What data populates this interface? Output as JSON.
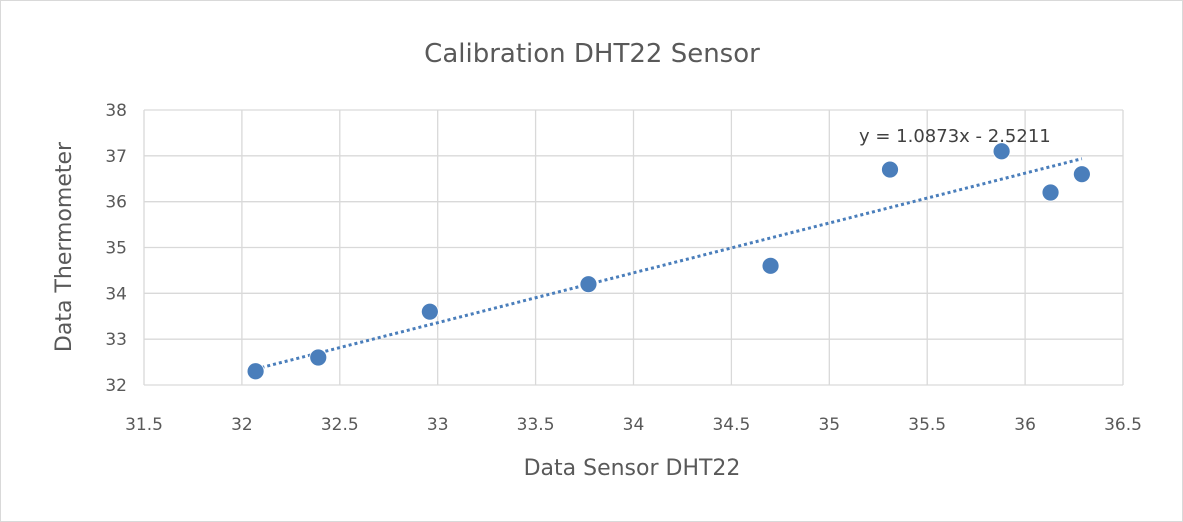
{
  "chart_data": {
    "type": "scatter",
    "title": "Calibration DHT22 Sensor",
    "xlabel": "Data Sensor DHT22",
    "ylabel": "Data Thermometer",
    "xlim": [
      31.5,
      36.5
    ],
    "ylim": [
      32,
      38
    ],
    "x_ticks": [
      "31.5",
      "32",
      "32.5",
      "33",
      "33.5",
      "34",
      "34.5",
      "35",
      "35.5",
      "36",
      "36.5"
    ],
    "y_ticks": [
      "32",
      "33",
      "34",
      "35",
      "36",
      "37",
      "38"
    ],
    "grid": true,
    "legend": "none",
    "marker_color": "#4a7ebb",
    "points": [
      {
        "x": 32.07,
        "y": 32.3
      },
      {
        "x": 32.39,
        "y": 32.6
      },
      {
        "x": 32.96,
        "y": 33.6
      },
      {
        "x": 33.77,
        "y": 34.2
      },
      {
        "x": 34.7,
        "y": 34.6
      },
      {
        "x": 35.31,
        "y": 36.7
      },
      {
        "x": 35.88,
        "y": 37.1
      },
      {
        "x": 36.13,
        "y": 36.2
      },
      {
        "x": 36.29,
        "y": 36.6
      }
    ],
    "trendline": {
      "type": "linear",
      "slope": 1.0873,
      "intercept": -2.5211,
      "label": "y = 1.0873x - 2.5211"
    }
  }
}
